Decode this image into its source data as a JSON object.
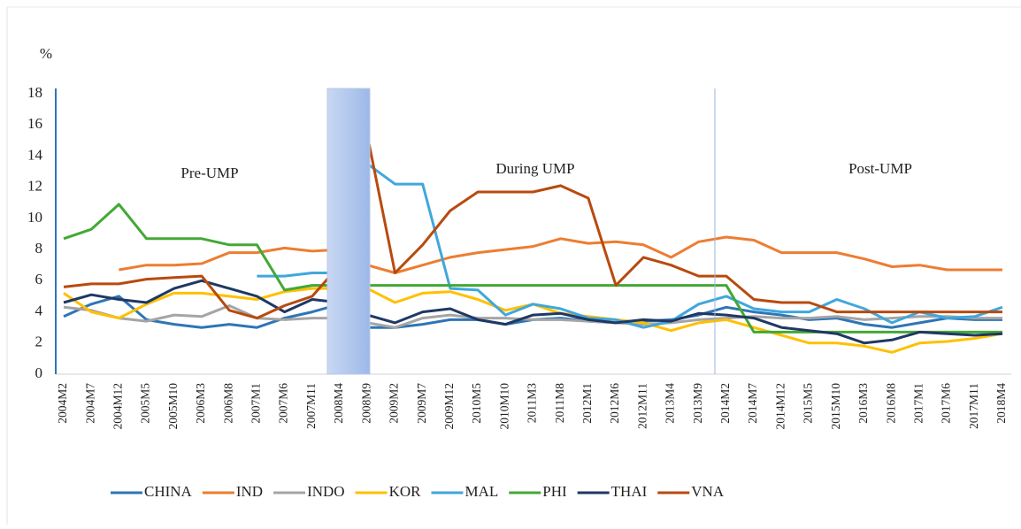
{
  "chart_data": {
    "type": "line",
    "ylabel": "%",
    "annotations": [
      "Pre-UMP",
      "During UMP",
      "Post-UMP"
    ],
    "categories": [
      "2004M2",
      "2004M7",
      "2004M12",
      "2005M5",
      "2005M10",
      "2006M3",
      "2006M8",
      "2007M1",
      "2007M6",
      "2007M11",
      "2008M4",
      "2008M9",
      "2009M2",
      "2009M7",
      "2009M12",
      "2010M5",
      "2010M10",
      "2011M3",
      "2011M8",
      "2012M1",
      "2012M6",
      "2012M11",
      "2013M4",
      "2013M9",
      "2014M2",
      "2014M7",
      "2014M12",
      "2015M5",
      "2015M10",
      "2016M3",
      "2016M8",
      "2017M1",
      "2017M6",
      "2017M11",
      "2018M4"
    ],
    "ylim": [
      0,
      18
    ],
    "yticks": [
      0,
      2,
      4,
      6,
      8,
      10,
      12,
      14,
      16,
      18
    ],
    "grid": false,
    "legend": "bottom",
    "series": [
      {
        "name": "CHINA",
        "color": "#2e75b6",
        "values": [
          3.7,
          4.5,
          5.0,
          3.5,
          3.2,
          3.0,
          3.2,
          3.0,
          3.6,
          4.0,
          4.5,
          3.0,
          3.0,
          3.2,
          3.5,
          3.5,
          3.2,
          3.5,
          3.6,
          3.4,
          3.3,
          3.4,
          3.5,
          3.8,
          4.3,
          4.0,
          3.8,
          3.5,
          3.6,
          3.2,
          3.0,
          3.3,
          3.6,
          3.5,
          3.5
        ]
      },
      {
        "name": "IND",
        "color": "#ed7d31",
        "values": [
          null,
          null,
          6.7,
          7.0,
          7.0,
          7.1,
          7.8,
          7.8,
          8.1,
          7.9,
          8.0,
          7.0,
          6.5,
          7.0,
          7.5,
          7.8,
          8.0,
          8.2,
          8.7,
          8.4,
          8.5,
          8.3,
          7.5,
          8.5,
          8.8,
          8.6,
          7.8,
          7.8,
          7.8,
          7.4,
          6.9,
          7.0,
          6.7,
          6.7,
          6.7
        ]
      },
      {
        "name": "INDO",
        "color": "#a5a5a5",
        "values": [
          4.3,
          4.1,
          3.6,
          3.4,
          3.8,
          3.7,
          4.4,
          3.6,
          3.5,
          3.6,
          3.6,
          3.3,
          3.0,
          3.6,
          3.8,
          3.6,
          3.6,
          3.5,
          3.5,
          3.4,
          3.3,
          3.2,
          3.3,
          3.5,
          3.6,
          3.7,
          3.6,
          3.6,
          3.7,
          3.5,
          3.6,
          3.7,
          3.7,
          3.6,
          3.6
        ]
      },
      {
        "name": "KOR",
        "color": "#ffc000",
        "values": [
          5.2,
          4.0,
          3.6,
          4.5,
          5.2,
          5.2,
          5.0,
          4.8,
          5.3,
          5.5,
          5.5,
          5.5,
          4.6,
          5.2,
          5.3,
          4.8,
          4.1,
          4.5,
          3.9,
          3.7,
          3.5,
          3.3,
          2.8,
          3.3,
          3.5,
          3.0,
          2.5,
          2.0,
          2.0,
          1.8,
          1.4,
          2.0,
          2.1,
          2.3,
          2.6
        ]
      },
      {
        "name": "MAL",
        "color": "#3fa7dd",
        "values": [
          null,
          null,
          null,
          null,
          null,
          null,
          null,
          6.3,
          6.3,
          6.5,
          6.5,
          13.5,
          12.2,
          12.2,
          5.5,
          5.4,
          3.8,
          4.5,
          4.2,
          3.6,
          3.5,
          3.0,
          3.4,
          4.5,
          5.0,
          4.2,
          4.0,
          4.0,
          4.8,
          4.2,
          3.3,
          4.0,
          3.6,
          3.7,
          4.3
        ]
      },
      {
        "name": "PHI",
        "color": "#43a835",
        "values": [
          8.7,
          9.3,
          10.9,
          8.7,
          8.7,
          8.7,
          8.3,
          8.3,
          5.4,
          5.7,
          5.7,
          5.7,
          5.7,
          5.7,
          5.7,
          5.7,
          5.7,
          5.7,
          5.7,
          5.7,
          5.7,
          5.7,
          5.7,
          5.7,
          5.7,
          2.7,
          2.7,
          2.7,
          2.7,
          2.7,
          2.7,
          2.7,
          2.7,
          2.7,
          2.7
        ]
      },
      {
        "name": "THAI",
        "color": "#1f3864",
        "values": [
          4.6,
          5.1,
          4.8,
          4.6,
          5.5,
          6.0,
          5.5,
          5.0,
          4.0,
          4.8,
          4.6,
          3.8,
          3.3,
          4.0,
          4.2,
          3.5,
          3.2,
          3.8,
          3.9,
          3.5,
          3.3,
          3.5,
          3.4,
          3.9,
          3.8,
          3.6,
          3.0,
          2.8,
          2.6,
          2.0,
          2.2,
          2.7,
          2.6,
          2.5,
          2.6
        ]
      },
      {
        "name": "VNA",
        "color": "#b84a0e",
        "values": [
          5.6,
          5.8,
          5.8,
          6.1,
          6.2,
          6.3,
          4.1,
          3.6,
          4.4,
          5.0,
          7.0,
          15.3,
          6.5,
          8.3,
          10.5,
          11.7,
          11.7,
          11.7,
          12.1,
          11.3,
          5.7,
          7.5,
          7.0,
          6.3,
          6.3,
          4.8,
          4.6,
          4.6,
          4.0,
          4.0,
          4.0,
          4.0,
          4.0,
          4.0,
          4.0
        ]
      }
    ]
  }
}
